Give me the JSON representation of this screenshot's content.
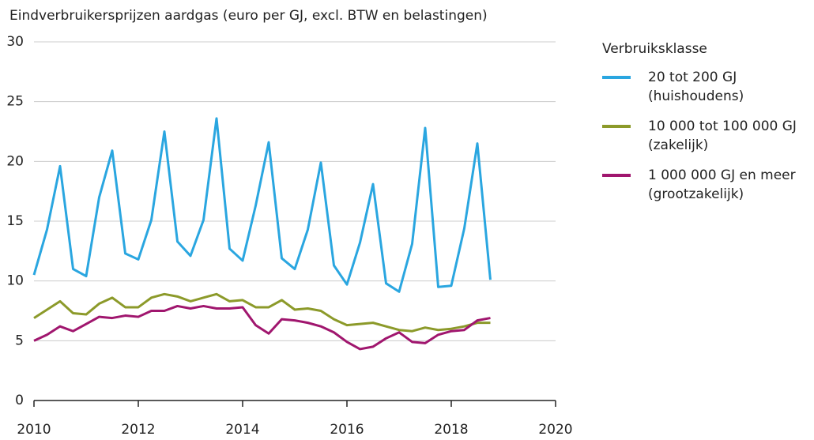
{
  "chart_data": {
    "type": "line",
    "title": "Eindverbruikersprijzen aardgas (euro per GJ, excl. BTW en belastingen)",
    "legend_title": "Verbruiksklasse",
    "legend": "right",
    "grid": true,
    "x": [
      2010,
      2010.25,
      2010.5,
      2010.75,
      2011,
      2011.25,
      2011.5,
      2011.75,
      2012,
      2012.25,
      2012.5,
      2012.75,
      2013,
      2013.25,
      2013.5,
      2013.75,
      2014,
      2014.25,
      2014.5,
      2014.75,
      2015,
      2015.25,
      2015.5,
      2015.75,
      2016,
      2016.25,
      2016.5,
      2016.75,
      2017,
      2017.25,
      2017.5,
      2017.75,
      2018,
      2018.25,
      2018.5,
      2018.75
    ],
    "xlim": [
      2010,
      2020
    ],
    "xticks": [
      2010,
      2012,
      2014,
      2016,
      2018,
      2020
    ],
    "ylim": [
      0,
      30
    ],
    "yticks": [
      0,
      5,
      10,
      15,
      20,
      25,
      30
    ],
    "series": [
      {
        "name": "20 tot 200 GJ (huishoudens)",
        "color": "#2aa6e0",
        "values": [
          10.5,
          14.3,
          19.6,
          11.0,
          10.4,
          17.0,
          20.9,
          12.3,
          11.8,
          15.1,
          22.5,
          13.3,
          12.1,
          15.1,
          23.6,
          12.7,
          11.7,
          16.3,
          21.6,
          11.9,
          11.0,
          14.3,
          19.9,
          11.3,
          9.7,
          13.2,
          18.1,
          9.8,
          9.1,
          13.1,
          22.8,
          9.5,
          9.6,
          14.4,
          21.5,
          10.1
        ]
      },
      {
        "name": "10 000 tot 100 000 GJ (zakelijk)",
        "color": "#8c9a2a",
        "values": [
          6.9,
          7.6,
          8.3,
          7.3,
          7.2,
          8.1,
          8.6,
          7.8,
          7.8,
          8.6,
          8.9,
          8.7,
          8.3,
          8.6,
          8.9,
          8.3,
          8.4,
          7.8,
          7.8,
          8.4,
          7.6,
          7.7,
          7.5,
          6.8,
          6.3,
          6.4,
          6.5,
          6.2,
          5.9,
          5.8,
          6.1,
          5.9,
          6.0,
          6.2,
          6.5,
          6.5
        ]
      },
      {
        "name": "1 000 000 GJ en meer (grootzakelijk)",
        "color": "#a0166e",
        "values": [
          5.0,
          5.5,
          6.2,
          5.8,
          6.4,
          7.0,
          6.9,
          7.1,
          7.0,
          7.5,
          7.5,
          7.9,
          7.7,
          7.9,
          7.7,
          7.7,
          7.8,
          6.3,
          5.6,
          6.8,
          6.7,
          6.5,
          6.2,
          5.7,
          4.9,
          4.3,
          4.5,
          5.2,
          5.7,
          4.9,
          4.8,
          5.5,
          5.8,
          5.9,
          6.7,
          6.9
        ]
      }
    ]
  }
}
